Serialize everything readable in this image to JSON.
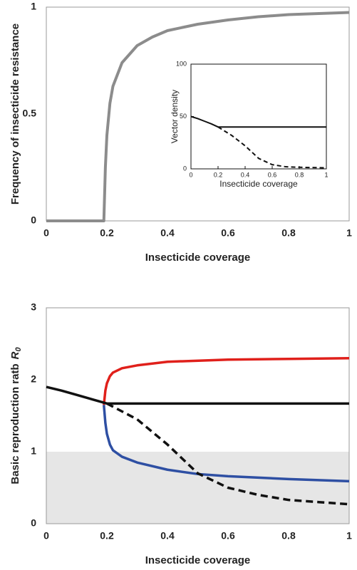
{
  "chart_data": [
    {
      "type": "line",
      "xlabel": "Insecticide coverage",
      "ylabel": "Frequency of insecticide resistance",
      "xlim": [
        0,
        1
      ],
      "xticks": [
        0,
        0.2,
        0.4,
        0.6,
        0.8,
        1
      ],
      "ylim": [
        0,
        1
      ],
      "yticks": [
        0,
        0.5,
        1
      ],
      "series": [
        {
          "color": "#8c8c8c",
          "width": 4,
          "dash": false,
          "x": [
            0,
            0.19,
            0.195,
            0.2,
            0.21,
            0.22,
            0.25,
            0.3,
            0.35,
            0.4,
            0.5,
            0.6,
            0.7,
            0.8,
            0.9,
            1
          ],
          "values": [
            0,
            0,
            0.25,
            0.4,
            0.55,
            0.63,
            0.74,
            0.82,
            0.86,
            0.89,
            0.92,
            0.94,
            0.955,
            0.965,
            0.97,
            0.975
          ]
        }
      ]
    },
    {
      "type": "line",
      "xlabel": "Insecticide coverage",
      "ylabel": "Vector density",
      "xlim": [
        0,
        1
      ],
      "xticks": [
        0,
        0.2,
        0.4,
        0.6,
        0.8,
        1
      ],
      "ylim": [
        0,
        100
      ],
      "yticks": [
        0,
        50,
        100
      ],
      "series": [
        {
          "color": "#111111",
          "width": 2,
          "dash": false,
          "x": [
            0,
            0.05,
            0.1,
            0.15,
            0.2,
            0.4,
            0.6,
            0.8,
            1
          ],
          "values": [
            50,
            48,
            45.5,
            43,
            40,
            40,
            40,
            40,
            40
          ]
        },
        {
          "color": "#111111",
          "width": 2,
          "dash": true,
          "x": [
            0.2,
            0.3,
            0.4,
            0.5,
            0.6,
            0.7,
            0.8,
            1
          ],
          "values": [
            40,
            32,
            22,
            10,
            4,
            2,
            1.5,
            1
          ]
        }
      ]
    },
    {
      "type": "line",
      "xlabel": "Insecticide coverage",
      "ylabel": "Basic reproduction ratb",
      "ylabel_symbol": "R",
      "ylabel_subscript": "0",
      "xlim": [
        0,
        1
      ],
      "xticks": [
        0,
        0.2,
        0.4,
        0.6,
        0.8,
        1
      ],
      "ylim": [
        0,
        3
      ],
      "yticks": [
        0,
        1,
        2,
        3
      ],
      "shaded_band": [
        0,
        1
      ],
      "shade_color": "#e6e6e6",
      "series": [
        {
          "color": "#e0201b",
          "width": 3.5,
          "dash": false,
          "x": [
            0.19,
            0.195,
            0.2,
            0.21,
            0.22,
            0.25,
            0.3,
            0.4,
            0.6,
            0.8,
            1
          ],
          "values": [
            1.65,
            1.85,
            1.95,
            2.05,
            2.1,
            2.16,
            2.2,
            2.25,
            2.28,
            2.29,
            2.3
          ]
        },
        {
          "color": "#2e4fa3",
          "width": 3.5,
          "dash": false,
          "x": [
            0.19,
            0.195,
            0.2,
            0.21,
            0.22,
            0.25,
            0.3,
            0.4,
            0.5,
            0.6,
            0.8,
            1
          ],
          "values": [
            1.65,
            1.4,
            1.25,
            1.1,
            1.02,
            0.93,
            0.85,
            0.75,
            0.69,
            0.66,
            0.62,
            0.59
          ]
        },
        {
          "color": "#111111",
          "width": 3.5,
          "dash": false,
          "x": [
            0,
            0.05,
            0.1,
            0.15,
            0.2,
            0.4,
            0.6,
            0.8,
            1
          ],
          "values": [
            1.9,
            1.85,
            1.79,
            1.73,
            1.67,
            1.67,
            1.67,
            1.67,
            1.67
          ]
        },
        {
          "color": "#111111",
          "width": 3.5,
          "dash": true,
          "x": [
            0.2,
            0.3,
            0.4,
            0.5,
            0.6,
            0.7,
            0.8,
            0.9,
            1
          ],
          "values": [
            1.67,
            1.45,
            1.1,
            0.7,
            0.5,
            0.4,
            0.33,
            0.3,
            0.27
          ]
        }
      ]
    }
  ]
}
